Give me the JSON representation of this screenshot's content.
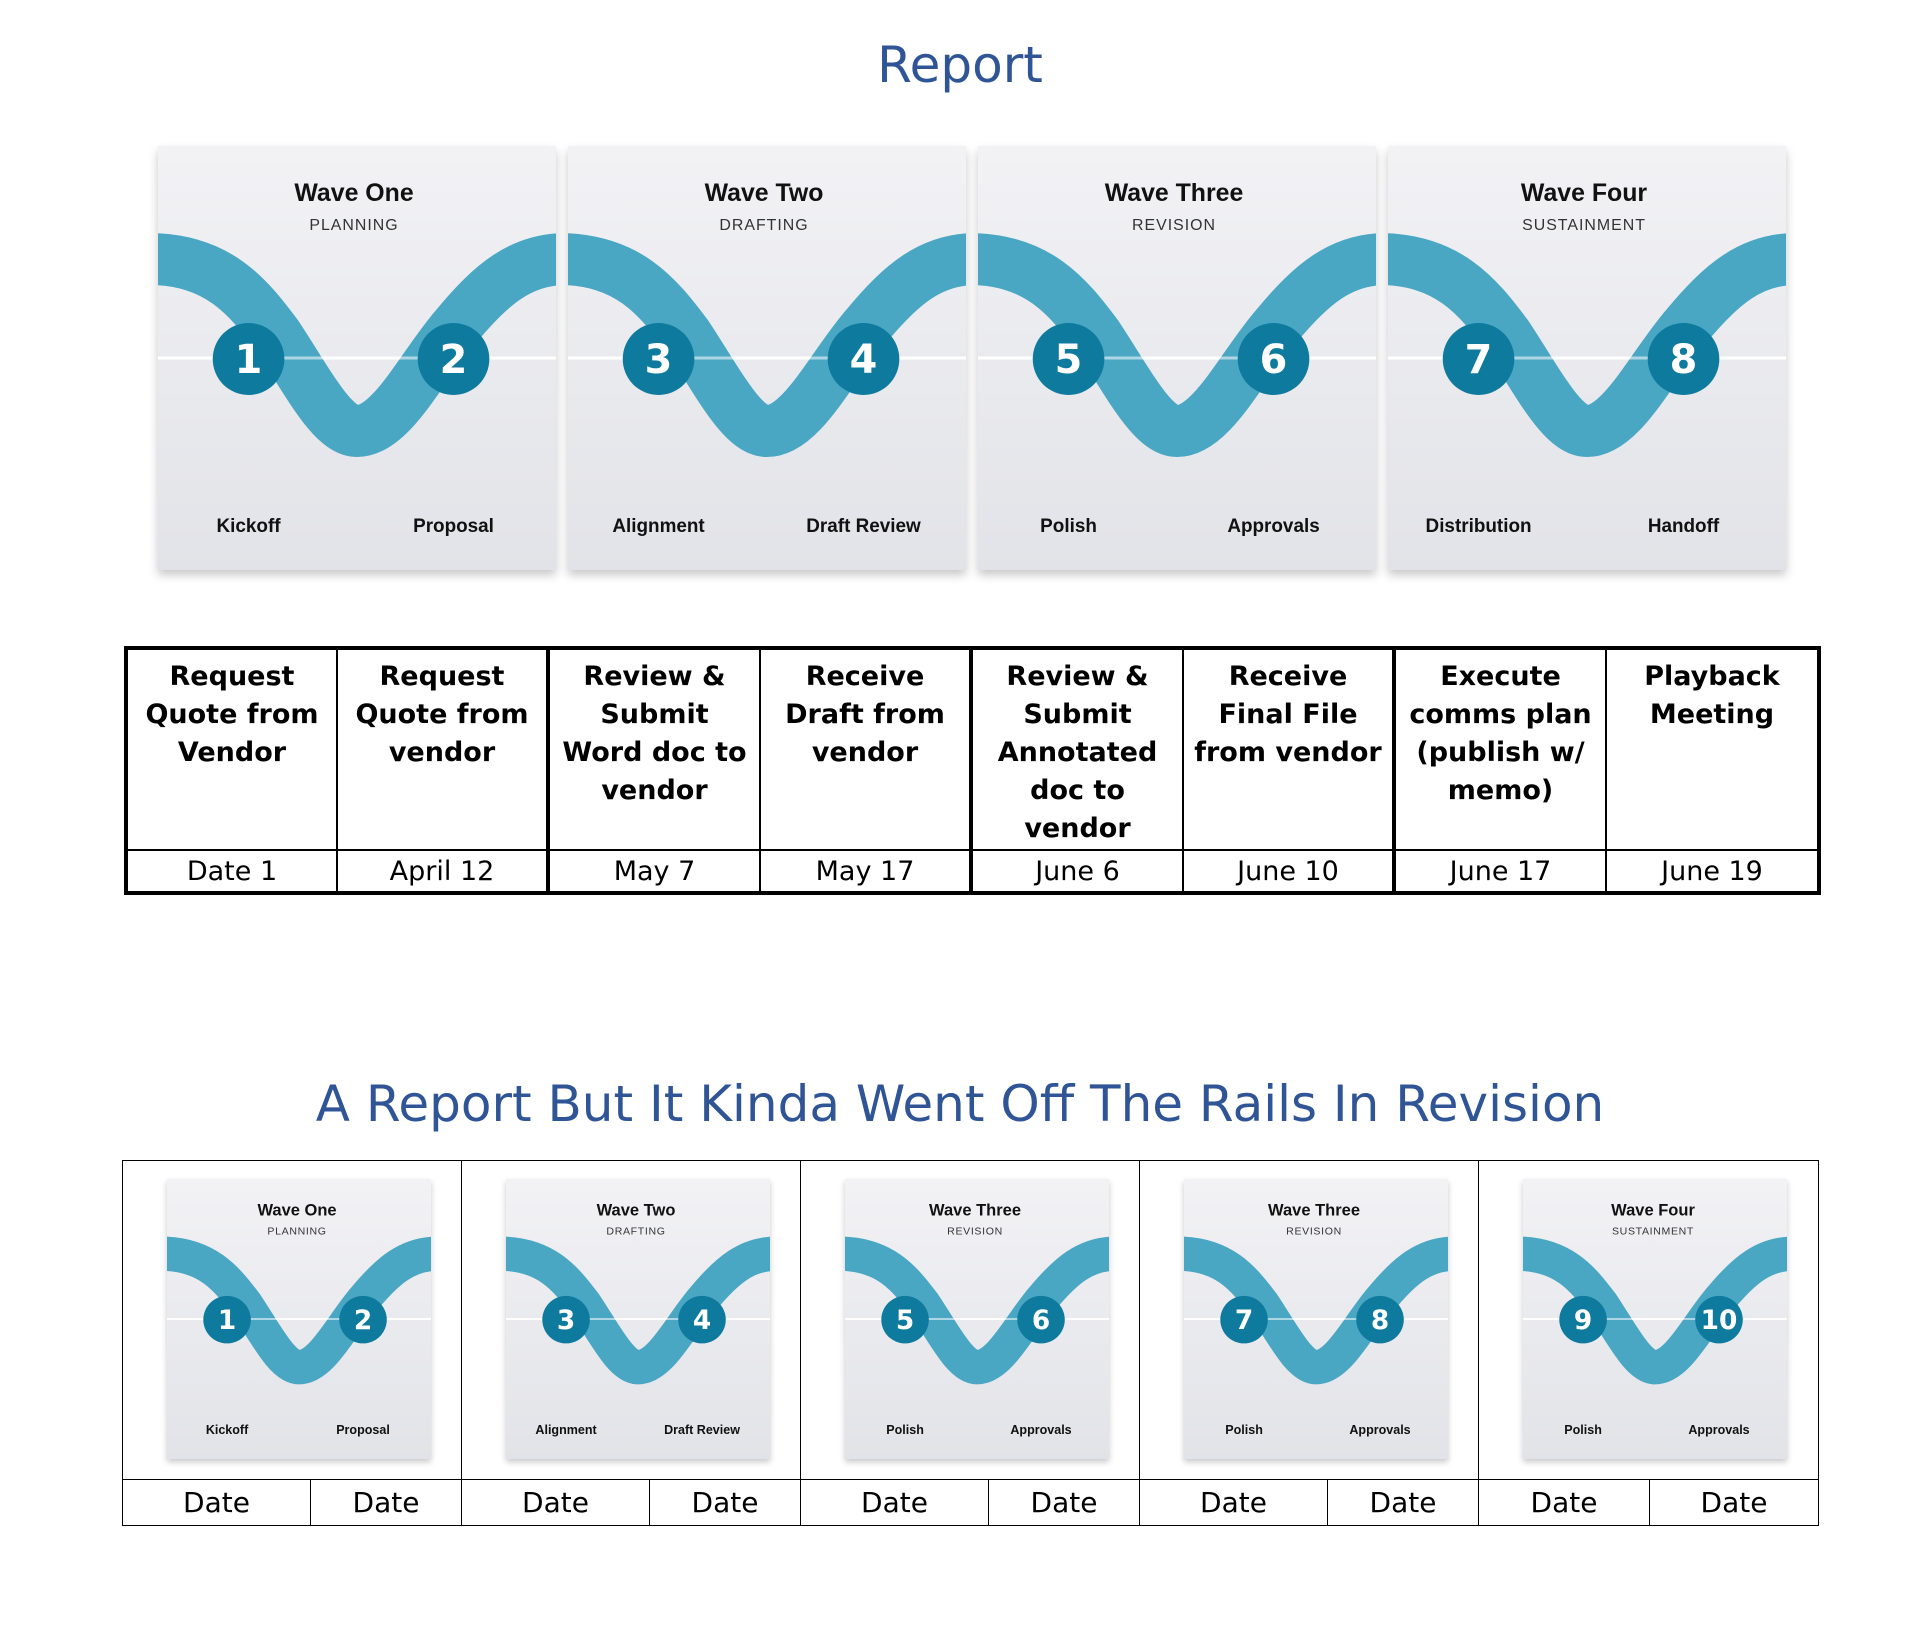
{
  "titles": {
    "top": "Report",
    "bottom": "A Report But It Kinda Went Off The Rails In Revision"
  },
  "colors": {
    "title": "#2f5597",
    "ribbon": "#4aa7c4",
    "marker": "#0d7a9e",
    "card_top": "#f2f2f5",
    "card_bottom": "#e2e3e8"
  },
  "top_cards": [
    {
      "wave": "Wave One",
      "phase": "PLANNING",
      "n1": "1",
      "n2": "2",
      "label1": "Kickoff",
      "label2": "Proposal"
    },
    {
      "wave": "Wave Two",
      "phase": "DRAFTING",
      "n1": "3",
      "n2": "4",
      "label1": "Alignment",
      "label2": "Draft Review"
    },
    {
      "wave": "Wave Three",
      "phase": "REVISION",
      "n1": "5",
      "n2": "6",
      "label1": "Polish",
      "label2": "Approvals"
    },
    {
      "wave": "Wave Four",
      "phase": "SUSTAINMENT",
      "n1": "7",
      "n2": "8",
      "label1": "Distribution",
      "label2": "Handoff"
    }
  ],
  "table1": {
    "tasks": [
      [
        "Request",
        "Quote from",
        "Vendor"
      ],
      [
        "Request",
        "Quote from",
        "vendor"
      ],
      [
        "Review &",
        "Submit",
        "Word doc to",
        "vendor"
      ],
      [
        "Receive",
        "Draft from",
        "vendor"
      ],
      [
        "Review &",
        "Submit",
        "Annotated",
        "doc to",
        "vendor"
      ],
      [
        "Receive",
        "Final File",
        "from vendor"
      ],
      [
        "Execute",
        "comms plan",
        "(publish w/",
        "memo)"
      ],
      [
        "Playback",
        "Meeting"
      ]
    ],
    "dates": [
      "Date 1",
      "April 12",
      "May 7",
      "May 17",
      "June 6",
      "June 10",
      "June 17",
      "June 19"
    ]
  },
  "bottom_cards": [
    {
      "wave": "Wave One",
      "phase": "PLANNING",
      "n1": "1",
      "n2": "2",
      "label1": "Kickoff",
      "label2": "Proposal"
    },
    {
      "wave": "Wave Two",
      "phase": "DRAFTING",
      "n1": "3",
      "n2": "4",
      "label1": "Alignment",
      "label2": "Draft Review"
    },
    {
      "wave": "Wave Three",
      "phase": "REVISION",
      "n1": "5",
      "n2": "6",
      "label1": "Polish",
      "label2": "Approvals"
    },
    {
      "wave": "Wave Three",
      "phase": "REVISION",
      "n1": "7",
      "n2": "8",
      "label1": "Polish",
      "label2": "Approvals"
    },
    {
      "wave": "Wave Four",
      "phase": "SUSTAINMENT",
      "n1": "9",
      "n2": "10",
      "label1": "Polish",
      "label2": "Approvals"
    }
  ],
  "table2": {
    "dates": [
      "Date",
      "Date",
      "Date",
      "Date",
      "Date",
      "Date",
      "Date",
      "Date",
      "Date",
      "Date"
    ]
  }
}
